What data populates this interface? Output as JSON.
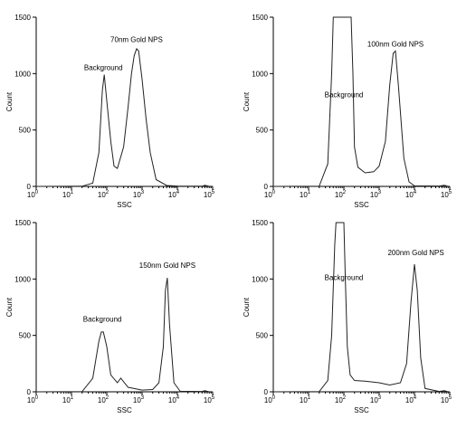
{
  "chart_data": [
    {
      "type": "line",
      "xlabel": "SSC",
      "ylabel": "Count",
      "xscale": "log",
      "xlim": [
        1,
        100000
      ],
      "ylim": [
        0,
        1500
      ],
      "x_ticks": [
        {
          "base": "10",
          "exp": "0"
        },
        {
          "base": "10",
          "exp": "1"
        },
        {
          "base": "10",
          "exp": "2"
        },
        {
          "base": "10",
          "exp": "3"
        },
        {
          "base": "10",
          "exp": "4"
        },
        {
          "base": "10",
          "exp": "5"
        }
      ],
      "y_ticks": [
        "0",
        "500",
        "1000",
        "1500"
      ],
      "series": [
        {
          "x": [
            1,
            20,
            40,
            60,
            75,
            85,
            100,
            130,
            160,
            200,
            300,
            400,
            500,
            600,
            700,
            800,
            1000,
            1300,
            1700,
            2500,
            5000,
            10000,
            50000,
            60000,
            70000,
            80000
          ],
          "y": [
            0,
            2,
            30,
            300,
            850,
            990,
            760,
            400,
            180,
            160,
            350,
            700,
            1000,
            1160,
            1220,
            1200,
            950,
            600,
            300,
            60,
            8,
            3,
            2,
            10,
            5,
            0
          ]
        }
      ],
      "annotations": [
        {
          "text": "70nm Gold NPS",
          "x": 700,
          "y": 1280
        },
        {
          "text": "Background",
          "x": 80,
          "y": 1030
        }
      ]
    },
    {
      "type": "line",
      "xlabel": "SSC",
      "ylabel": "Count",
      "xscale": "log",
      "xlim": [
        1,
        100000
      ],
      "ylim": [
        0,
        1500
      ],
      "x_ticks": [
        {
          "base": "10",
          "exp": "0"
        },
        {
          "base": "10",
          "exp": "1"
        },
        {
          "base": "10",
          "exp": "2"
        },
        {
          "base": "10",
          "exp": "3"
        },
        {
          "base": "10",
          "exp": "4"
        },
        {
          "base": "10",
          "exp": "5"
        }
      ],
      "y_ticks": [
        "0",
        "500",
        "1000",
        "1500"
      ],
      "series": [
        {
          "x": [
            1,
            20,
            35,
            45,
            50,
            56,
            60,
            100,
            160,
            180,
            200,
            250,
            400,
            700,
            1000,
            1500,
            2000,
            2500,
            2900,
            3500,
            5000,
            7000,
            10000,
            50000,
            70000,
            90000
          ],
          "y": [
            0,
            2,
            200,
            1000,
            1500,
            1500,
            1500,
            1500,
            1500,
            1000,
            350,
            170,
            120,
            130,
            180,
            400,
            900,
            1180,
            1200,
            900,
            250,
            40,
            5,
            3,
            10,
            0
          ]
        }
      ],
      "annotations": [
        {
          "text": "100nm Gold NPS",
          "x": 2900,
          "y": 1240
        },
        {
          "text": "Background",
          "x": 100,
          "y": 790
        }
      ]
    },
    {
      "type": "line",
      "xlabel": "SSC",
      "ylabel": "Count",
      "xscale": "log",
      "xlim": [
        1,
        100000
      ],
      "ylim": [
        0,
        1500
      ],
      "x_ticks": [
        {
          "base": "10",
          "exp": "0"
        },
        {
          "base": "10",
          "exp": "1"
        },
        {
          "base": "10",
          "exp": "2"
        },
        {
          "base": "10",
          "exp": "3"
        },
        {
          "base": "10",
          "exp": "4"
        },
        {
          "base": "10",
          "exp": "5"
        }
      ],
      "y_ticks": [
        "0",
        "500",
        "1000",
        "1500"
      ],
      "series": [
        {
          "x": [
            1,
            20,
            40,
            60,
            70,
            80,
            100,
            130,
            200,
            250,
            400,
            1000,
            2000,
            3000,
            4000,
            4600,
            5200,
            6000,
            8000,
            12000,
            50000,
            60000,
            80000
          ],
          "y": [
            0,
            2,
            120,
            450,
            530,
            530,
            400,
            150,
            80,
            120,
            40,
            15,
            20,
            80,
            400,
            900,
            1010,
            600,
            80,
            5,
            3,
            10,
            0
          ]
        }
      ],
      "annotations": [
        {
          "text": "150nm Gold NPS",
          "x": 5200,
          "y": 1100
        },
        {
          "text": "Background",
          "x": 75,
          "y": 620
        }
      ]
    },
    {
      "type": "line",
      "xlabel": "SSC",
      "ylabel": "Count",
      "xscale": "log",
      "xlim": [
        1,
        100000
      ],
      "ylim": [
        0,
        1500
      ],
      "x_ticks": [
        {
          "base": "10",
          "exp": "0"
        },
        {
          "base": "10",
          "exp": "1"
        },
        {
          "base": "10",
          "exp": "2"
        },
        {
          "base": "10",
          "exp": "3"
        },
        {
          "base": "10",
          "exp": "4"
        },
        {
          "base": "10",
          "exp": "5"
        }
      ],
      "y_ticks": [
        "0",
        "500",
        "1000",
        "1500"
      ],
      "series": [
        {
          "x": [
            1,
            20,
            35,
            45,
            55,
            60,
            65,
            100,
            110,
            125,
            150,
            200,
            400,
            1000,
            2000,
            4000,
            6000,
            8000,
            10000,
            12000,
            15000,
            20000,
            50000,
            70000,
            90000
          ],
          "y": [
            0,
            2,
            100,
            500,
            1300,
            1500,
            1500,
            1500,
            1000,
            400,
            150,
            100,
            95,
            80,
            60,
            80,
            250,
            800,
            1130,
            900,
            300,
            30,
            3,
            10,
            0
          ]
        }
      ],
      "annotations": [
        {
          "text": "200nm Gold NPS",
          "x": 11000,
          "y": 1210
        },
        {
          "text": "Background",
          "x": 100,
          "y": 990
        }
      ]
    }
  ]
}
